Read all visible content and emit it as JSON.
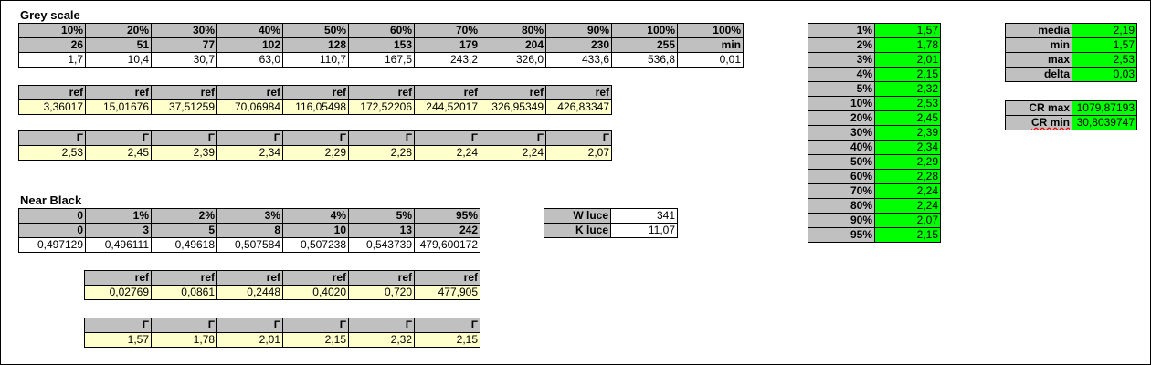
{
  "sections": {
    "grey_scale_title": "Grey scale",
    "near_black_title": "Near Black"
  },
  "grey_scale": {
    "percent": [
      "10%",
      "20%",
      "30%",
      "40%",
      "50%",
      "60%",
      "70%",
      "80%",
      "90%",
      "100%",
      "100%"
    ],
    "level": [
      "26",
      "51",
      "77",
      "102",
      "128",
      "153",
      "179",
      "204",
      "230",
      "255",
      "min"
    ],
    "measured": [
      "1,7",
      "10,4",
      "30,7",
      "63,0",
      "110,7",
      "167,5",
      "243,2",
      "326,0",
      "433,6",
      "536,8",
      "0,01"
    ],
    "ref_label": "ref",
    "ref": [
      "3,36017",
      "15,01676",
      "37,51259",
      "70,06984",
      "116,05498",
      "172,52206",
      "244,52017",
      "326,95349",
      "426,83347"
    ],
    "gamma_label": "Γ",
    "gamma": [
      "2,53",
      "2,45",
      "2,39",
      "2,34",
      "2,29",
      "2,28",
      "2,24",
      "2,24",
      "2,07"
    ]
  },
  "near_black": {
    "percent": [
      "0",
      "1%",
      "2%",
      "3%",
      "4%",
      "5%",
      "95%"
    ],
    "level": [
      "0",
      "3",
      "5",
      "8",
      "10",
      "13",
      "242"
    ],
    "measured": [
      "0,497129",
      "0,496111",
      "0,49618",
      "0,507584",
      "0,507238",
      "0,543739",
      "479,600172"
    ],
    "ref_label": "ref",
    "ref": [
      "0,02769",
      "0,0861",
      "0,2448",
      "0,4020",
      "0,720",
      "477,905"
    ],
    "gamma_label": "Γ",
    "gamma": [
      "1,57",
      "1,78",
      "2,01",
      "2,15",
      "2,32",
      "2,15"
    ]
  },
  "luminance": [
    {
      "label": "W luce",
      "value": "341"
    },
    {
      "label": "K luce",
      "value": "11,07"
    }
  ],
  "gamma_summary": [
    {
      "label": "1%",
      "value": "1,57"
    },
    {
      "label": "2%",
      "value": "1,78"
    },
    {
      "label": "3%",
      "value": "2,01"
    },
    {
      "label": "4%",
      "value": "2,15"
    },
    {
      "label": "5%",
      "value": "2,32"
    },
    {
      "label": "10%",
      "value": "2,53"
    },
    {
      "label": "20%",
      "value": "2,45"
    },
    {
      "label": "30%",
      "value": "2,39"
    },
    {
      "label": "40%",
      "value": "2,34"
    },
    {
      "label": "50%",
      "value": "2,29"
    },
    {
      "label": "60%",
      "value": "2,28"
    },
    {
      "label": "70%",
      "value": "2,24"
    },
    {
      "label": "80%",
      "value": "2,24"
    },
    {
      "label": "90%",
      "value": "2,07"
    },
    {
      "label": "95%",
      "value": "2,15"
    }
  ],
  "stats": [
    {
      "label": "media",
      "value": "2,19"
    },
    {
      "label": "min",
      "value": "1,57"
    },
    {
      "label": "max",
      "value": "2,53"
    },
    {
      "label": "delta",
      "value": "0,03"
    }
  ],
  "contrast": [
    {
      "label": "CR max",
      "value": "1079,87193"
    },
    {
      "label": "CR min",
      "value": "30,8039747"
    }
  ],
  "colors": {
    "header_gray": "#c0c0c0",
    "ref_yellow": "#ffffcc",
    "highlight_green": "#00ff00"
  }
}
